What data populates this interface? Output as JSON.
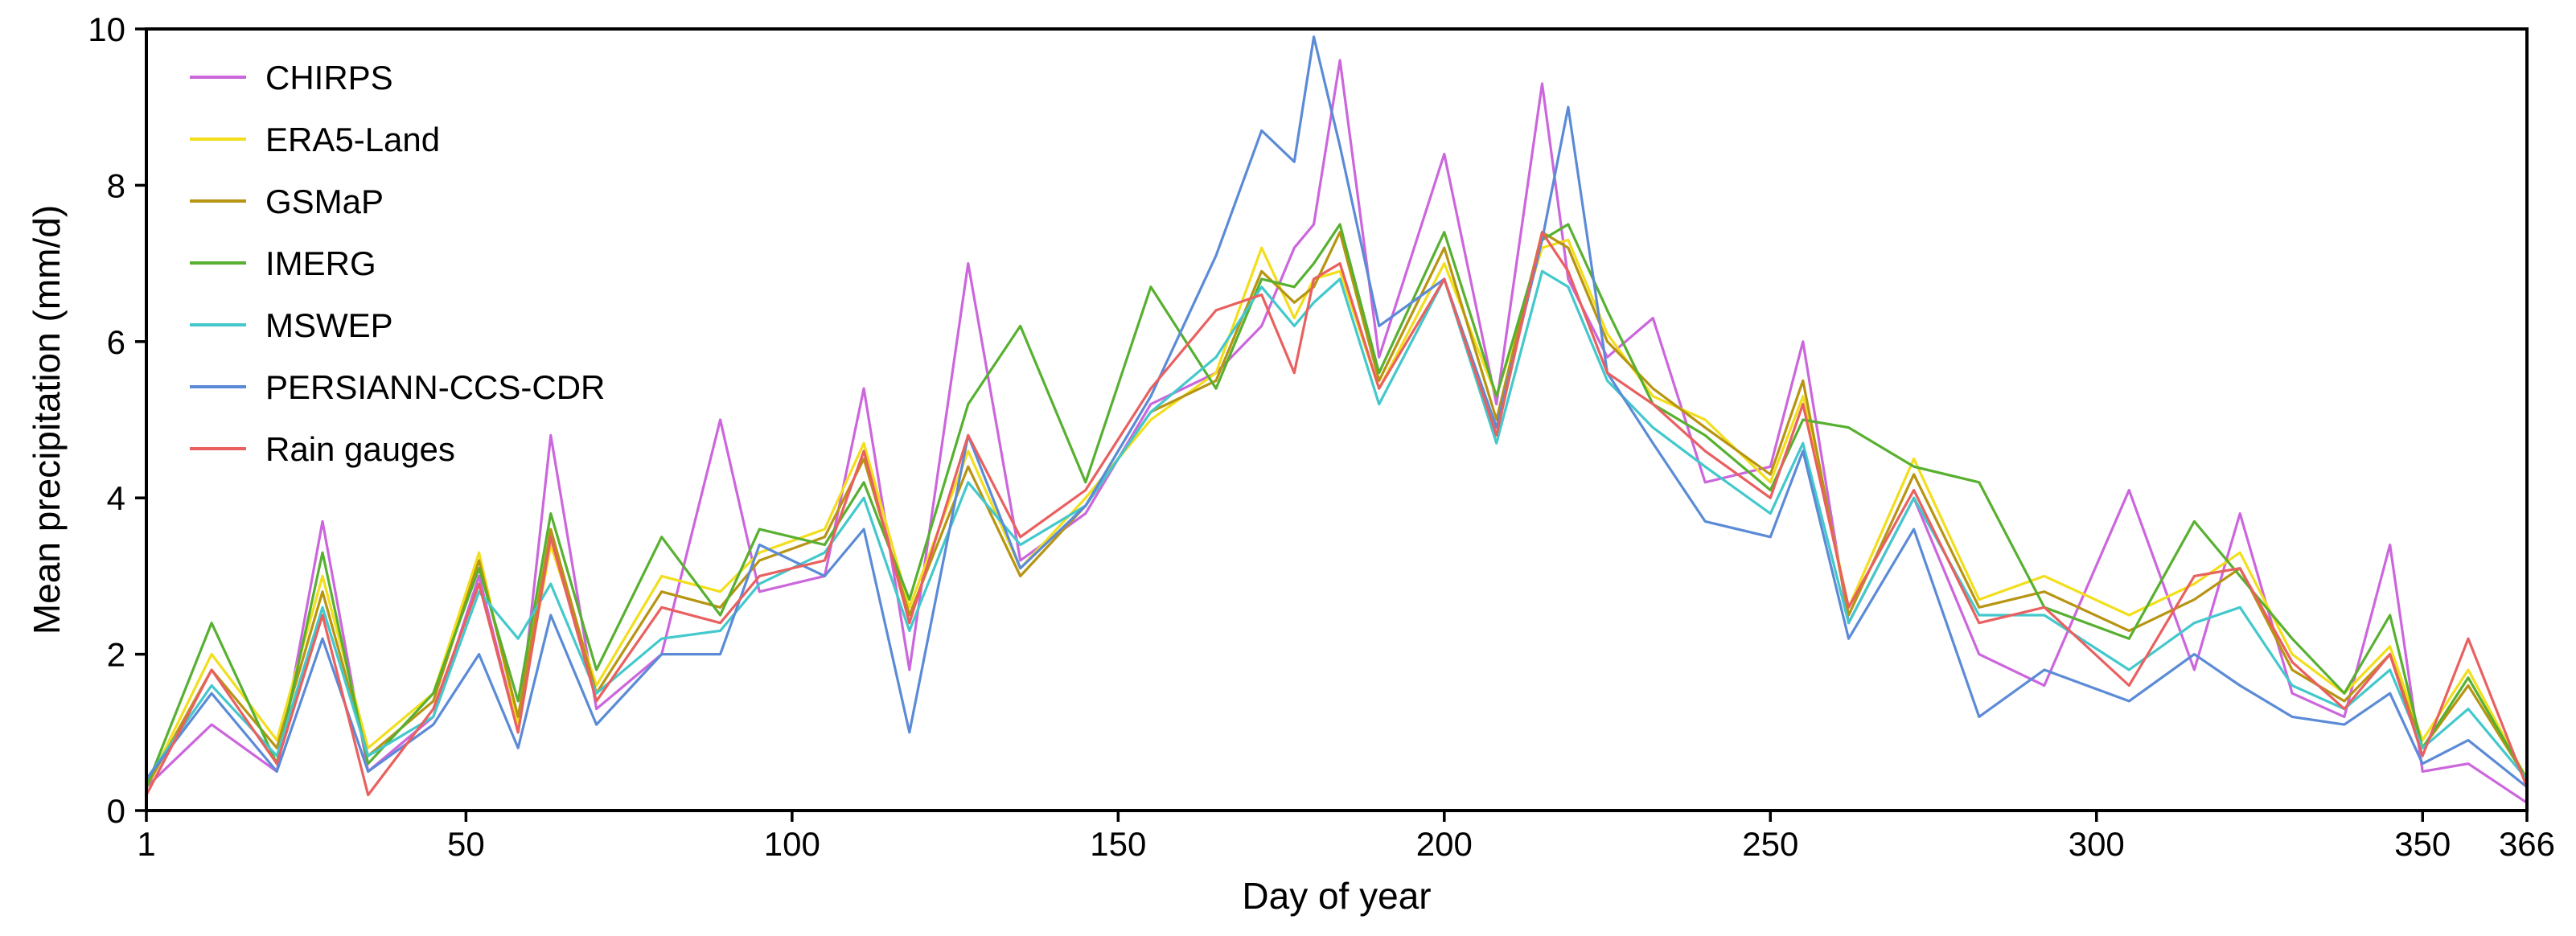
{
  "chart_data": {
    "type": "line",
    "title": "",
    "xlabel": "Day of year",
    "ylabel": "Mean precipitation (mm/d)",
    "xlim": [
      1,
      366
    ],
    "ylim": [
      0,
      10
    ],
    "xticks": [
      1,
      50,
      100,
      150,
      200,
      250,
      300,
      350,
      366
    ],
    "yticks": [
      0,
      2,
      4,
      6,
      8,
      10
    ],
    "grid": false,
    "legend_position": "top-left",
    "x": [
      1,
      11,
      21,
      28,
      35,
      45,
      52,
      58,
      63,
      70,
      80,
      89,
      95,
      105,
      111,
      118,
      127,
      135,
      145,
      155,
      165,
      172,
      177,
      180,
      184,
      190,
      200,
      208,
      215,
      219,
      225,
      232,
      240,
      250,
      255,
      262,
      272,
      282,
      292,
      305,
      315,
      322,
      330,
      338,
      345,
      350,
      357,
      366
    ],
    "series": [
      {
        "name": "CHIRPS",
        "color": "#cc66dd",
        "values": [
          0.3,
          1.1,
          0.5,
          3.7,
          0.5,
          1.2,
          3.0,
          1.0,
          4.8,
          1.3,
          2.0,
          5.0,
          2.8,
          3.0,
          5.4,
          1.8,
          7.0,
          3.2,
          3.8,
          5.2,
          5.6,
          6.2,
          7.2,
          7.5,
          9.6,
          5.8,
          8.4,
          5.2,
          9.3,
          6.8,
          5.8,
          6.3,
          4.2,
          4.4,
          6.0,
          2.4,
          4.0,
          2.0,
          1.6,
          4.1,
          1.8,
          3.8,
          1.5,
          1.2,
          3.4,
          0.5,
          0.6,
          0.1
        ]
      },
      {
        "name": "ERA5-Land",
        "color": "#f2de1c",
        "values": [
          0.3,
          2.0,
          0.9,
          3.0,
          0.8,
          1.5,
          3.3,
          1.1,
          3.4,
          1.6,
          3.0,
          2.8,
          3.3,
          3.6,
          4.7,
          2.6,
          4.6,
          3.1,
          4.0,
          5.0,
          5.6,
          7.2,
          6.3,
          6.8,
          6.9,
          5.4,
          7.0,
          5.3,
          7.2,
          7.3,
          6.1,
          5.3,
          5.0,
          4.2,
          5.3,
          2.6,
          4.5,
          2.7,
          3.0,
          2.5,
          2.9,
          3.3,
          2.0,
          1.5,
          2.1,
          0.9,
          1.8,
          0.4
        ]
      },
      {
        "name": "GSMaP",
        "color": "#b79412",
        "values": [
          0.3,
          1.8,
          0.8,
          2.8,
          0.7,
          1.4,
          3.2,
          1.2,
          3.6,
          1.5,
          2.8,
          2.6,
          3.2,
          3.5,
          4.5,
          2.5,
          4.4,
          3.0,
          3.9,
          5.1,
          5.5,
          6.9,
          6.5,
          6.7,
          7.4,
          5.5,
          7.2,
          5.0,
          7.4,
          7.2,
          6.0,
          5.4,
          4.9,
          4.3,
          5.5,
          2.5,
          4.3,
          2.6,
          2.8,
          2.3,
          2.7,
          3.1,
          1.8,
          1.4,
          2.0,
          0.8,
          1.6,
          0.4
        ]
      },
      {
        "name": "IMERG",
        "color": "#57b030",
        "values": [
          0.3,
          2.4,
          0.6,
          3.3,
          0.6,
          1.5,
          3.1,
          1.4,
          3.8,
          1.8,
          3.5,
          2.5,
          3.6,
          3.4,
          4.2,
          2.7,
          5.2,
          6.2,
          4.2,
          6.7,
          5.4,
          6.8,
          6.7,
          7.0,
          7.5,
          5.6,
          7.4,
          5.3,
          7.3,
          7.5,
          6.4,
          5.2,
          4.8,
          4.1,
          5.0,
          4.9,
          4.4,
          4.2,
          2.6,
          2.2,
          3.7,
          3.0,
          2.2,
          1.5,
          2.5,
          0.8,
          1.7,
          0.4
        ]
      },
      {
        "name": "MSWEP",
        "color": "#43c8cc",
        "values": [
          0.4,
          1.6,
          0.7,
          2.6,
          0.7,
          1.2,
          2.8,
          2.2,
          2.9,
          1.5,
          2.2,
          2.3,
          2.9,
          3.3,
          4.0,
          2.3,
          4.2,
          3.4,
          3.9,
          5.1,
          5.8,
          6.7,
          6.2,
          6.5,
          6.8,
          5.2,
          6.8,
          4.7,
          6.9,
          6.7,
          5.5,
          4.9,
          4.4,
          3.8,
          4.7,
          2.4,
          4.0,
          2.5,
          2.5,
          1.8,
          2.4,
          2.6,
          1.6,
          1.3,
          1.8,
          0.8,
          1.3,
          0.4
        ]
      },
      {
        "name": "PERSIANN-CCS-CDR",
        "color": "#5b8bd6",
        "values": [
          0.4,
          1.5,
          0.5,
          2.2,
          0.5,
          1.1,
          2.0,
          0.8,
          2.5,
          1.1,
          2.0,
          2.0,
          3.4,
          3.0,
          3.6,
          1.0,
          4.8,
          3.1,
          3.9,
          5.3,
          7.1,
          8.7,
          8.3,
          9.9,
          8.5,
          6.2,
          6.8,
          4.9,
          7.3,
          9.0,
          5.6,
          4.7,
          3.7,
          3.5,
          4.6,
          2.2,
          3.6,
          1.2,
          1.8,
          1.4,
          2.0,
          1.6,
          1.2,
          1.1,
          1.5,
          0.6,
          0.9,
          0.3
        ]
      },
      {
        "name": "Rain gauges",
        "color": "#e96060",
        "values": [
          0.2,
          1.8,
          0.6,
          2.5,
          0.2,
          1.3,
          2.9,
          1.0,
          3.5,
          1.4,
          2.6,
          2.4,
          3.0,
          3.2,
          4.6,
          2.4,
          4.8,
          3.5,
          4.1,
          5.4,
          6.4,
          6.6,
          5.6,
          6.8,
          7.0,
          5.4,
          6.8,
          4.8,
          7.4,
          6.9,
          5.6,
          5.2,
          4.6,
          4.0,
          5.2,
          2.6,
          4.1,
          2.4,
          2.6,
          1.6,
          3.0,
          3.1,
          1.9,
          1.3,
          2.0,
          0.7,
          2.2,
          0.3
        ]
      }
    ]
  }
}
